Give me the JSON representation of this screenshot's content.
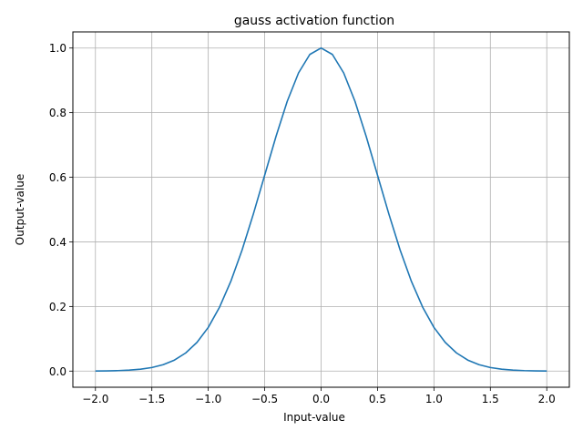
{
  "chart_data": {
    "type": "line",
    "title": "gauss activation function",
    "xlabel": "Input-value",
    "ylabel": "Output-value",
    "xlim": [
      -2.2,
      2.2
    ],
    "ylim": [
      -0.05,
      1.05
    ],
    "xticks": [
      -2.0,
      -1.5,
      -1.0,
      -0.5,
      0.0,
      0.5,
      1.0,
      1.5,
      2.0
    ],
    "xtick_labels": [
      "−2.0",
      "−1.5",
      "−1.0",
      "−0.5",
      "0.0",
      "0.5",
      "1.0",
      "1.5",
      "2.0"
    ],
    "yticks": [
      0.0,
      0.2,
      0.4,
      0.6,
      0.8,
      1.0
    ],
    "ytick_labels": [
      "0.0",
      "0.2",
      "0.4",
      "0.6",
      "0.8",
      "1.0"
    ],
    "grid": true,
    "series": [
      {
        "color": "#1f77b4",
        "x": [
          -2.0,
          -1.9,
          -1.8,
          -1.7,
          -1.6,
          -1.5,
          -1.4,
          -1.3,
          -1.2,
          -1.1,
          -1.0,
          -0.9,
          -0.8,
          -0.7,
          -0.6,
          -0.5,
          -0.4,
          -0.3,
          -0.2,
          -0.1,
          0.0,
          0.1,
          0.2,
          0.3,
          0.4,
          0.5,
          0.6,
          0.7,
          0.8,
          0.9,
          1.0,
          1.1,
          1.2,
          1.3,
          1.4,
          1.5,
          1.6,
          1.7,
          1.8,
          1.9,
          2.0
        ],
        "y": [
          0.0003,
          0.0007,
          0.0015,
          0.0031,
          0.006,
          0.011,
          0.0198,
          0.034,
          0.0561,
          0.0889,
          0.1353,
          0.1979,
          0.278,
          0.3753,
          0.4868,
          0.6065,
          0.7261,
          0.8353,
          0.9231,
          0.9802,
          1.0,
          0.9802,
          0.9231,
          0.8353,
          0.7261,
          0.6065,
          0.4868,
          0.3753,
          0.278,
          0.1979,
          0.1353,
          0.0889,
          0.0561,
          0.034,
          0.0198,
          0.011,
          0.006,
          0.0031,
          0.0015,
          0.0007,
          0.0003
        ]
      }
    ]
  }
}
